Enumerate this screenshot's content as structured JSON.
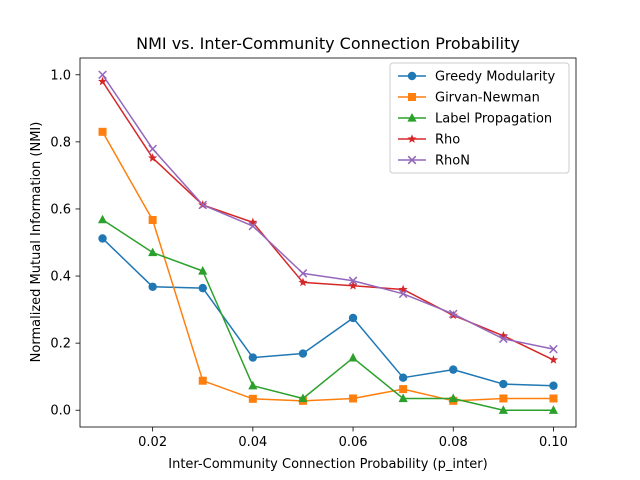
{
  "chart_data": {
    "type": "line",
    "title": "NMI vs. Inter-Community Connection Probability",
    "xlabel": "Inter-Community Connection Probability (p_inter)",
    "ylabel": "Normalized Mutual Information (NMI)",
    "x": [
      0.01,
      0.02,
      0.03,
      0.04,
      0.05,
      0.06,
      0.07,
      0.08,
      0.09,
      0.1
    ],
    "xlim": [
      0.0055,
      0.1045
    ],
    "ylim": [
      -0.05,
      1.05
    ],
    "xticks": [
      0.02,
      0.04,
      0.06,
      0.08,
      0.1
    ],
    "xtick_labels": [
      "0.02",
      "0.04",
      "0.06",
      "0.08",
      "0.10"
    ],
    "yticks": [
      0.0,
      0.2,
      0.4,
      0.6,
      0.8,
      1.0
    ],
    "ytick_labels": [
      "0.0",
      "0.2",
      "0.4",
      "0.6",
      "0.8",
      "1.0"
    ],
    "grid": false,
    "legend_position": "top-right",
    "series": [
      {
        "name": "Greedy Modularity",
        "color": "#1f77b4",
        "marker": "circle",
        "values": [
          0.512,
          0.368,
          0.364,
          0.157,
          0.169,
          0.275,
          0.097,
          0.121,
          0.078,
          0.073
        ]
      },
      {
        "name": "Girvan-Newman",
        "color": "#ff7f0e",
        "marker": "square",
        "values": [
          0.83,
          0.567,
          0.088,
          0.034,
          0.028,
          0.035,
          0.063,
          0.028,
          0.035,
          0.035
        ]
      },
      {
        "name": "Label Propagation",
        "color": "#2ca02c",
        "marker": "triangle",
        "values": [
          0.568,
          0.47,
          0.415,
          0.073,
          0.035,
          0.156,
          0.035,
          0.035,
          0.0,
          0.0
        ]
      },
      {
        "name": "Rho",
        "color": "#d62728",
        "marker": "star",
        "values": [
          0.98,
          0.752,
          0.612,
          0.56,
          0.381,
          0.371,
          0.36,
          0.283,
          0.222,
          0.15
        ]
      },
      {
        "name": "RhoN",
        "color": "#9467bd",
        "marker": "x",
        "values": [
          1.0,
          0.779,
          0.612,
          0.549,
          0.408,
          0.386,
          0.347,
          0.287,
          0.213,
          0.182
        ]
      }
    ]
  }
}
